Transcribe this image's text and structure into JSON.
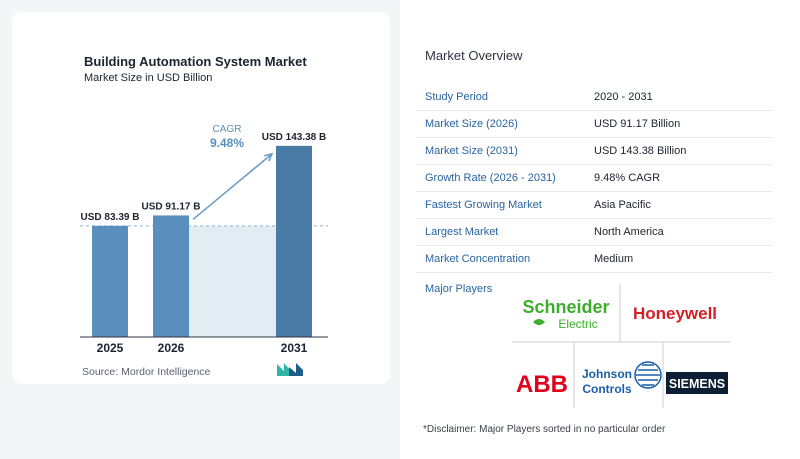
{
  "chart": {
    "title": "Building Automation System Market",
    "subtitle": "Market Size in USD Billion",
    "source": "Source:  Mordor Intelligence"
  },
  "chart_data": {
    "type": "bar",
    "title": "Building Automation System Market",
    "subtitle": "Market Size in USD Billion",
    "categories": [
      "2025",
      "2026",
      "2031"
    ],
    "values": [
      83.39,
      91.17,
      143.38
    ],
    "value_labels": [
      "USD 83.39 B",
      "USD 91.17 B",
      "USD 143.38 B"
    ],
    "ylim": [
      0,
      150
    ],
    "grid": false,
    "annotation": {
      "label": "CAGR",
      "value": "9.48%",
      "from": "2026",
      "to": "2031"
    },
    "colors": {
      "bar": "#5a8fbd",
      "bar_dark": "#4a7aa6",
      "baseline_band": "#e3ecf3",
      "arrow": "#6f9fc6",
      "cagr_text": "#5a8fbd",
      "dashed": "#8fb3d0"
    }
  },
  "overview": {
    "title": "Market Overview",
    "rows": [
      {
        "label": "Study Period",
        "value": "2020 - 2031"
      },
      {
        "label": "Market Size (2026)",
        "value": "USD 91.17 Billion"
      },
      {
        "label": "Market Size (2031)",
        "value": "USD 143.38 Billion"
      },
      {
        "label": "Growth Rate (2026 - 2031)",
        "value": "9.48% CAGR"
      },
      {
        "label": "Fastest Growing Market",
        "value": "Asia Pacific"
      },
      {
        "label": "Largest Market",
        "value": "North America"
      },
      {
        "label": "Market Concentration",
        "value": "Medium"
      }
    ],
    "players_label": "Major Players",
    "players": [
      {
        "name": "Schneider",
        "sub": "Electric",
        "color": "#3dae2b"
      },
      {
        "name": "Honeywell",
        "color": "#d41f26"
      },
      {
        "name": "ABB",
        "color": "#e2001a"
      },
      {
        "name": "Johnson",
        "sub": "Controls",
        "color": "#1a5fa8"
      },
      {
        "name": "SIEMENS",
        "color": "#ffffff",
        "bg": "#0b1e33"
      }
    ],
    "disclaimer": "*Disclaimer: Major Players sorted in no particular order"
  }
}
